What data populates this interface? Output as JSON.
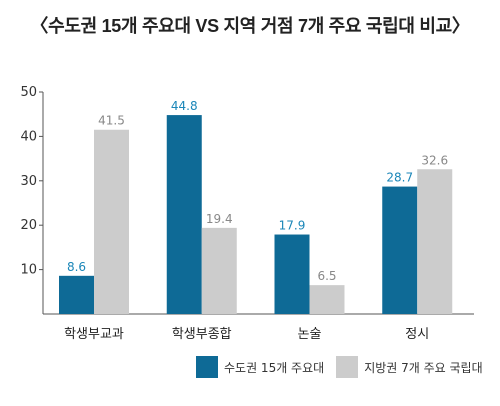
{
  "chart_data": {
    "type": "bar",
    "title": "〈수도권 15개 주요대 VS 지역 거점 7개 주요 국립대 비교〉",
    "categories": [
      "학생부교과",
      "학생부종합",
      "논술",
      "정시"
    ],
    "series": [
      {
        "name": "수도권 15개 주요대",
        "values": [
          8.6,
          44.8,
          17.9,
          28.7
        ],
        "color": "#0e6a96",
        "label_color": "#1a86b8"
      },
      {
        "name": "지방권 7개 주요 국립대",
        "values": [
          41.5,
          19.4,
          6.5,
          32.6
        ],
        "color": "#cccccc",
        "label_color": "#888888"
      }
    ],
    "ylim": [
      0,
      50
    ],
    "yticks": [
      10,
      20,
      30,
      40,
      50
    ],
    "grid": false,
    "legend": "bottom-right"
  }
}
